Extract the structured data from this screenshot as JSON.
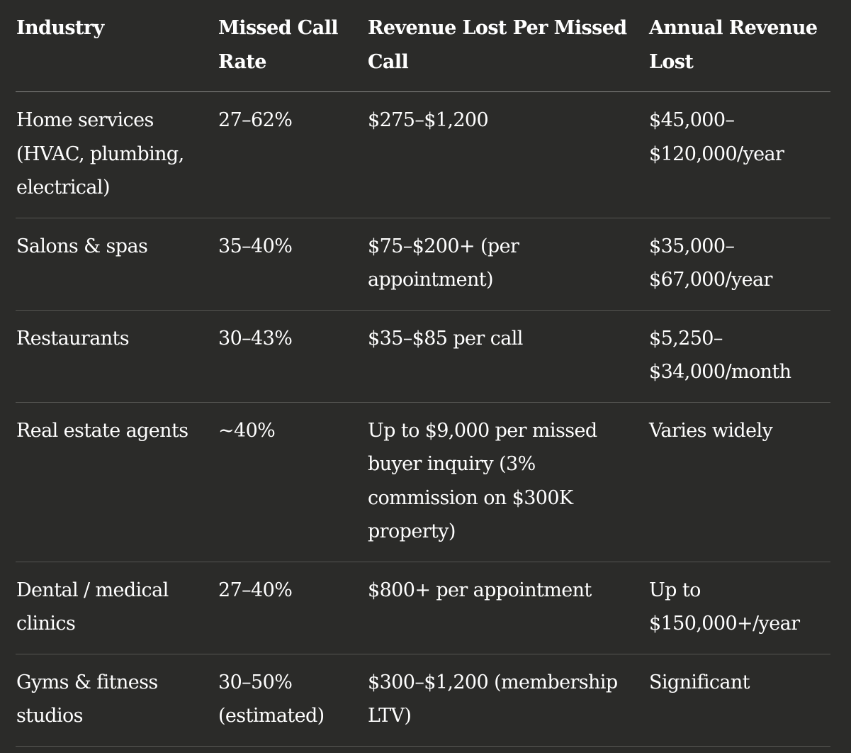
{
  "table": {
    "headers": [
      "Industry",
      "Missed Call Rate",
      "Revenue Lost Per Missed Call",
      "Annual Revenue Lost"
    ],
    "rows": [
      [
        "Home services (HVAC, plumbing, electrical)",
        "27–62%",
        "$275–$1,200",
        "$45,000–$120,000/year"
      ],
      [
        "Salons & spas",
        "35–40%",
        "$75–$200+ (per appointment)",
        "$35,000–$67,000/year"
      ],
      [
        "Restaurants",
        "30–43%",
        "$35–$85 per call",
        "$5,250–$34,000/month"
      ],
      [
        "Real estate agents",
        "~40%",
        "Up to $9,000 per missed buyer inquiry (3% commission on $300K property)",
        "Varies widely"
      ],
      [
        "Dental / medical clinics",
        "27–40%",
        "$800+ per appointment",
        "Up to $150,000+/year"
      ],
      [
        "Gyms & fitness studios",
        "30–50% (estimated)",
        "$300–$1,200 (membership LTV)",
        "Significant"
      ]
    ]
  }
}
